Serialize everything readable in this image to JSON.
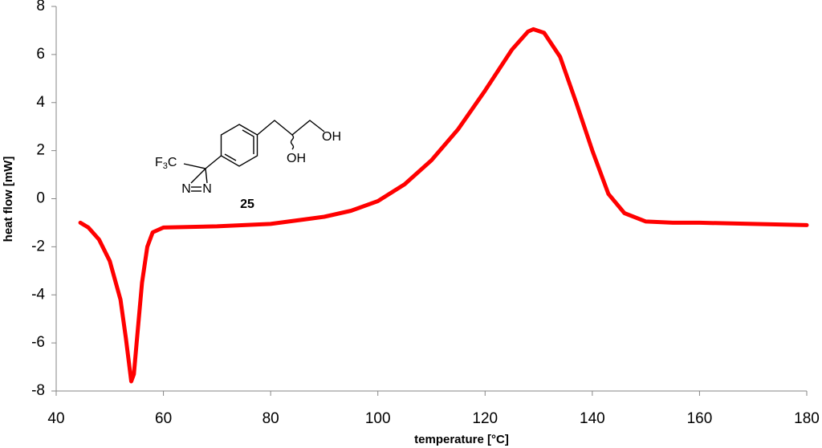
{
  "chart_data": {
    "type": "line",
    "x_label": "temperature [°C]",
    "y_label": "heat flow [mW]",
    "x": [
      44.5,
      46,
      48,
      50,
      52,
      53,
      54,
      54.5,
      55,
      56,
      57,
      58,
      60,
      70,
      80,
      90,
      95,
      100,
      105,
      110,
      115,
      120,
      125,
      128,
      129,
      131,
      134,
      137,
      140,
      143,
      146,
      150,
      155,
      160,
      170,
      180
    ],
    "values": [
      -1.0,
      -1.2,
      -1.7,
      -2.6,
      -4.2,
      -5.8,
      -7.6,
      -7.3,
      -6.0,
      -3.5,
      -2.0,
      -1.4,
      -1.2,
      -1.15,
      -1.05,
      -0.75,
      -0.5,
      -0.1,
      0.6,
      1.6,
      2.9,
      4.5,
      6.2,
      6.95,
      7.05,
      6.9,
      5.9,
      4.0,
      2.0,
      0.2,
      -0.6,
      -0.95,
      -1.0,
      -1.0,
      -1.05,
      -1.1
    ],
    "color": "#ff0000",
    "xlim": [
      40,
      180
    ],
    "xticks": [
      40,
      60,
      80,
      100,
      120,
      140,
      160,
      180
    ],
    "ylim": [
      -8,
      8
    ],
    "yticks": [
      -8,
      -6,
      -4,
      -2,
      0,
      2,
      4,
      6,
      8
    ],
    "grid": false,
    "annotations": [
      "F3C",
      "N",
      "N",
      "OH",
      "OH",
      "25"
    ]
  }
}
